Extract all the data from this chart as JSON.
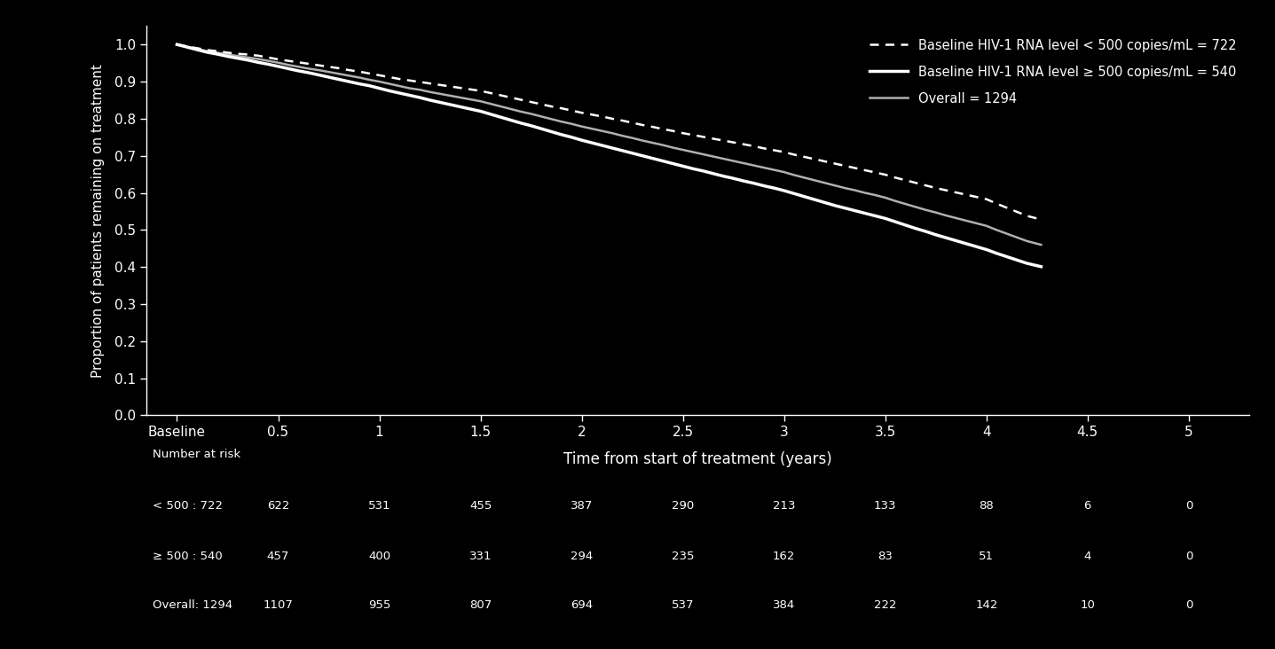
{
  "background_color": "#000000",
  "text_color": "#ffffff",
  "ylabel": "Proportion of patients remaining on treatment",
  "xlabel": "Time from start of treatment (years)",
  "ylim": [
    0.0,
    1.05
  ],
  "xlim": [
    -0.15,
    5.3
  ],
  "yticks": [
    0.0,
    0.1,
    0.2,
    0.3,
    0.4,
    0.5,
    0.6,
    0.7,
    0.8,
    0.9,
    1.0
  ],
  "xtick_labels": [
    "Baseline",
    "0.5",
    "1",
    "1.5",
    "2",
    "2.5",
    "3",
    "3.5",
    "4",
    "4.5",
    "5"
  ],
  "xtick_positions": [
    0,
    0.5,
    1,
    1.5,
    2,
    2.5,
    3,
    3.5,
    4,
    4.5,
    5
  ],
  "line_lt500": {
    "x": [
      0,
      0.05,
      0.1,
      0.15,
      0.2,
      0.25,
      0.3,
      0.35,
      0.4,
      0.45,
      0.5,
      0.55,
      0.6,
      0.65,
      0.7,
      0.75,
      0.8,
      0.85,
      0.9,
      0.95,
      1.0,
      1.05,
      1.1,
      1.15,
      1.2,
      1.25,
      1.3,
      1.35,
      1.4,
      1.45,
      1.5,
      1.55,
      1.6,
      1.65,
      1.7,
      1.75,
      1.8,
      1.85,
      1.9,
      1.95,
      2.0,
      2.05,
      2.1,
      2.15,
      2.2,
      2.25,
      2.3,
      2.35,
      2.4,
      2.45,
      2.5,
      2.55,
      2.6,
      2.65,
      2.7,
      2.75,
      2.8,
      2.85,
      2.9,
      2.95,
      3.0,
      3.05,
      3.1,
      3.15,
      3.2,
      3.25,
      3.3,
      3.35,
      3.4,
      3.45,
      3.5,
      3.55,
      3.6,
      3.65,
      3.7,
      3.75,
      3.8,
      3.85,
      3.9,
      3.95,
      4.0,
      4.05,
      4.1,
      4.15,
      4.2,
      4.27
    ],
    "y": [
      1.0,
      0.995,
      0.99,
      0.985,
      0.982,
      0.978,
      0.975,
      0.973,
      0.97,
      0.965,
      0.96,
      0.956,
      0.952,
      0.948,
      0.944,
      0.94,
      0.936,
      0.931,
      0.927,
      0.922,
      0.917,
      0.912,
      0.907,
      0.903,
      0.899,
      0.895,
      0.891,
      0.887,
      0.883,
      0.879,
      0.875,
      0.869,
      0.863,
      0.857,
      0.851,
      0.845,
      0.839,
      0.833,
      0.828,
      0.822,
      0.816,
      0.811,
      0.806,
      0.8,
      0.795,
      0.789,
      0.783,
      0.778,
      0.772,
      0.767,
      0.761,
      0.756,
      0.751,
      0.746,
      0.741,
      0.736,
      0.731,
      0.726,
      0.72,
      0.715,
      0.71,
      0.703,
      0.697,
      0.691,
      0.685,
      0.679,
      0.673,
      0.667,
      0.661,
      0.655,
      0.649,
      0.641,
      0.634,
      0.627,
      0.62,
      0.613,
      0.607,
      0.601,
      0.595,
      0.589,
      0.583,
      0.571,
      0.56,
      0.549,
      0.538,
      0.528
    ],
    "linestyle": "--",
    "color": "#ffffff",
    "linewidth": 1.8,
    "label": "Baseline HIV-1 RNA level < 500 copies/mL = 722"
  },
  "line_ge500": {
    "x": [
      0,
      0.05,
      0.1,
      0.15,
      0.2,
      0.25,
      0.3,
      0.35,
      0.4,
      0.45,
      0.5,
      0.55,
      0.6,
      0.65,
      0.7,
      0.75,
      0.8,
      0.85,
      0.9,
      0.95,
      1.0,
      1.05,
      1.1,
      1.15,
      1.2,
      1.25,
      1.3,
      1.35,
      1.4,
      1.45,
      1.5,
      1.55,
      1.6,
      1.65,
      1.7,
      1.75,
      1.8,
      1.85,
      1.9,
      1.95,
      2.0,
      2.05,
      2.1,
      2.15,
      2.2,
      2.25,
      2.3,
      2.35,
      2.4,
      2.45,
      2.5,
      2.55,
      2.6,
      2.65,
      2.7,
      2.75,
      2.8,
      2.85,
      2.9,
      2.95,
      3.0,
      3.05,
      3.1,
      3.15,
      3.2,
      3.25,
      3.3,
      3.35,
      3.4,
      3.45,
      3.5,
      3.55,
      3.6,
      3.65,
      3.7,
      3.75,
      3.8,
      3.85,
      3.9,
      3.95,
      4.0,
      4.05,
      4.1,
      4.15,
      4.2,
      4.27
    ],
    "y": [
      1.0,
      0.993,
      0.986,
      0.979,
      0.974,
      0.968,
      0.963,
      0.958,
      0.952,
      0.947,
      0.941,
      0.935,
      0.929,
      0.924,
      0.918,
      0.912,
      0.906,
      0.9,
      0.894,
      0.889,
      0.882,
      0.875,
      0.869,
      0.863,
      0.857,
      0.85,
      0.844,
      0.838,
      0.832,
      0.826,
      0.82,
      0.812,
      0.804,
      0.796,
      0.788,
      0.781,
      0.773,
      0.765,
      0.757,
      0.75,
      0.742,
      0.735,
      0.728,
      0.721,
      0.714,
      0.707,
      0.7,
      0.693,
      0.686,
      0.679,
      0.672,
      0.665,
      0.659,
      0.652,
      0.645,
      0.639,
      0.632,
      0.626,
      0.619,
      0.613,
      0.606,
      0.598,
      0.59,
      0.582,
      0.574,
      0.566,
      0.559,
      0.552,
      0.545,
      0.538,
      0.531,
      0.522,
      0.513,
      0.504,
      0.496,
      0.487,
      0.479,
      0.471,
      0.463,
      0.455,
      0.447,
      0.437,
      0.428,
      0.419,
      0.41,
      0.401
    ],
    "linestyle": "-",
    "color": "#ffffff",
    "linewidth": 2.5,
    "label": "Baseline HIV-1 RNA level ≥ 500 copies/mL = 540"
  },
  "line_overall": {
    "x": [
      0,
      0.05,
      0.1,
      0.15,
      0.2,
      0.25,
      0.3,
      0.35,
      0.4,
      0.45,
      0.5,
      0.55,
      0.6,
      0.65,
      0.7,
      0.75,
      0.8,
      0.85,
      0.9,
      0.95,
      1.0,
      1.05,
      1.1,
      1.15,
      1.2,
      1.25,
      1.3,
      1.35,
      1.4,
      1.45,
      1.5,
      1.55,
      1.6,
      1.65,
      1.7,
      1.75,
      1.8,
      1.85,
      1.9,
      1.95,
      2.0,
      2.05,
      2.1,
      2.15,
      2.2,
      2.25,
      2.3,
      2.35,
      2.4,
      2.45,
      2.5,
      2.55,
      2.6,
      2.65,
      2.7,
      2.75,
      2.8,
      2.85,
      2.9,
      2.95,
      3.0,
      3.05,
      3.1,
      3.15,
      3.2,
      3.25,
      3.3,
      3.35,
      3.4,
      3.45,
      3.5,
      3.55,
      3.6,
      3.65,
      3.7,
      3.75,
      3.8,
      3.85,
      3.9,
      3.95,
      4.0,
      4.05,
      4.1,
      4.15,
      4.2,
      4.27
    ],
    "y": [
      1.0,
      0.994,
      0.988,
      0.982,
      0.978,
      0.973,
      0.969,
      0.965,
      0.961,
      0.956,
      0.951,
      0.945,
      0.94,
      0.935,
      0.931,
      0.926,
      0.921,
      0.916,
      0.911,
      0.905,
      0.9,
      0.894,
      0.888,
      0.882,
      0.878,
      0.872,
      0.867,
      0.862,
      0.857,
      0.852,
      0.847,
      0.84,
      0.833,
      0.826,
      0.819,
      0.813,
      0.806,
      0.799,
      0.792,
      0.786,
      0.779,
      0.773,
      0.767,
      0.761,
      0.754,
      0.748,
      0.741,
      0.735,
      0.729,
      0.722,
      0.716,
      0.71,
      0.704,
      0.698,
      0.692,
      0.686,
      0.68,
      0.674,
      0.668,
      0.662,
      0.656,
      0.648,
      0.641,
      0.634,
      0.627,
      0.62,
      0.613,
      0.607,
      0.6,
      0.594,
      0.587,
      0.578,
      0.57,
      0.562,
      0.554,
      0.547,
      0.539,
      0.532,
      0.525,
      0.518,
      0.511,
      0.5,
      0.49,
      0.48,
      0.47,
      0.46
    ],
    "linestyle": "-",
    "color": "#b0b0b0",
    "linewidth": 1.8,
    "label": "Overall = 1294"
  },
  "number_at_risk": {
    "header": "Number at risk",
    "rows": [
      {
        "label": "< 500 : 722",
        "values": [
          "622",
          "531",
          "455",
          "387",
          "290",
          "213",
          "133",
          "88",
          "6",
          "0"
        ]
      },
      {
        "label": "≥ 500 : 540",
        "values": [
          "457",
          "400",
          "331",
          "294",
          "235",
          "162",
          "83",
          "51",
          "4",
          "0"
        ]
      },
      {
        "label": "Overall: 1294",
        "values": [
          "1107",
          "955",
          "807",
          "694",
          "537",
          "384",
          "222",
          "142",
          "10",
          "0"
        ]
      }
    ],
    "x_positions": [
      0,
      0.5,
      1.0,
      1.5,
      2.0,
      2.5,
      3.0,
      3.5,
      4.0,
      4.5,
      5.0
    ]
  }
}
